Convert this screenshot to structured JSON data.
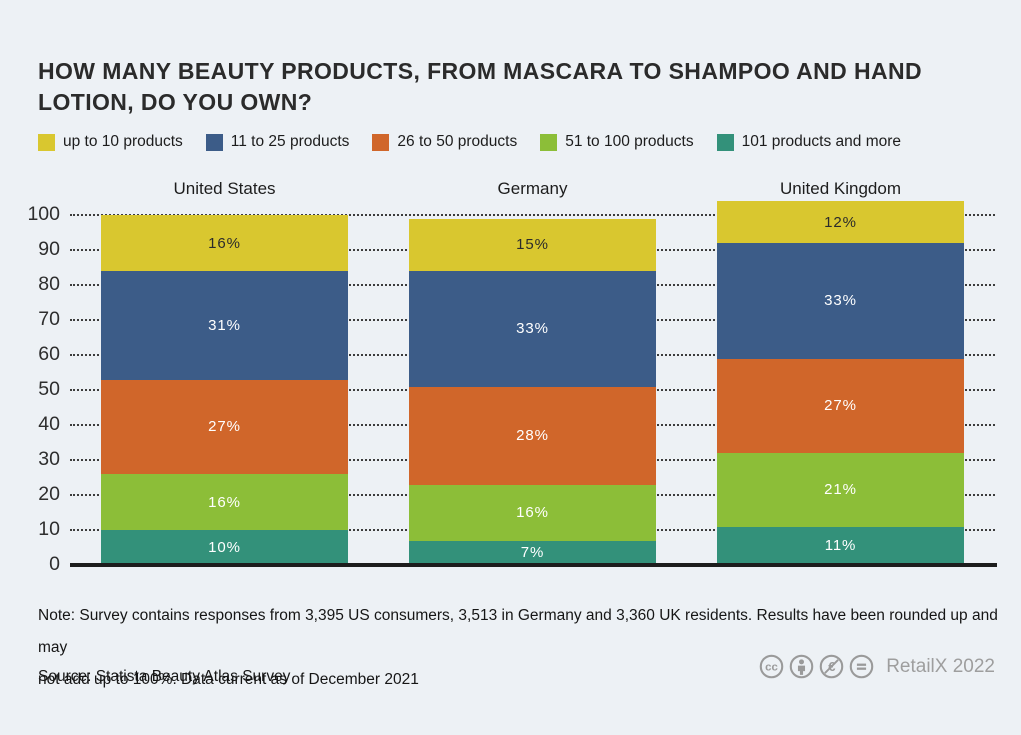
{
  "page": {
    "background": "#edf1f5",
    "title": {
      "lines": [
        "HOW MANY BEAUTY PRODUCTS, FROM MASCARA TO SHAMPOO AND HAND",
        "LOTION, DO YOU OWN?"
      ]
    },
    "footer": {
      "note_lines": [
        "Note: Survey contains responses from 3,395 US consumers, 3,513 in Germany and 3,360 UK residents. Results have been rounded up and may",
        "not add up to 100%. Data current as of December 2021"
      ],
      "source": "Source: Statista Beauty Atlas Survey",
      "license_icons": [
        "cc-icon",
        "cc-by-person-icon",
        "cc-nc-euro-icon",
        "cc-nd-equals-icon"
      ],
      "credit": "RetailX 2022"
    }
  },
  "chart_data": {
    "type": "bar",
    "stacked": true,
    "orientation": "vertical",
    "title": "HOW MANY BEAUTY PRODUCTS, FROM MASCARA TO SHAMPOO AND HAND LOTION, DO YOU OWN?",
    "categories": [
      "United States",
      "Germany",
      "United Kingdom"
    ],
    "series": [
      {
        "name": "up to 10 products",
        "color": "#d9c72f",
        "label_color": "#2b2b2b",
        "values": [
          16,
          15,
          12
        ]
      },
      {
        "name": "11 to 25 products",
        "color": "#3c5c88",
        "label_color": "#ffffff",
        "values": [
          31,
          33,
          33
        ]
      },
      {
        "name": "26 to 50 products",
        "color": "#d0662a",
        "label_color": "#ffffff",
        "values": [
          27,
          28,
          27
        ]
      },
      {
        "name": "51 to 100 products",
        "color": "#8cbe38",
        "label_color": "#ffffff",
        "values": [
          16,
          16,
          21
        ]
      },
      {
        "name": "101 products and more",
        "color": "#33917a",
        "label_color": "#ffffff",
        "values": [
          10,
          7,
          11
        ]
      }
    ],
    "series_stack_order": "first-series-on-top",
    "value_suffix": "%",
    "ylim": [
      0,
      100
    ],
    "yticks": [
      0,
      10,
      20,
      30,
      40,
      50,
      60,
      70,
      80,
      90,
      100
    ],
    "grid": "horizontal dotted",
    "legend_position": "top",
    "axis_line_color": "#1d1d1d",
    "gridline_color": "#3c3c3c"
  }
}
